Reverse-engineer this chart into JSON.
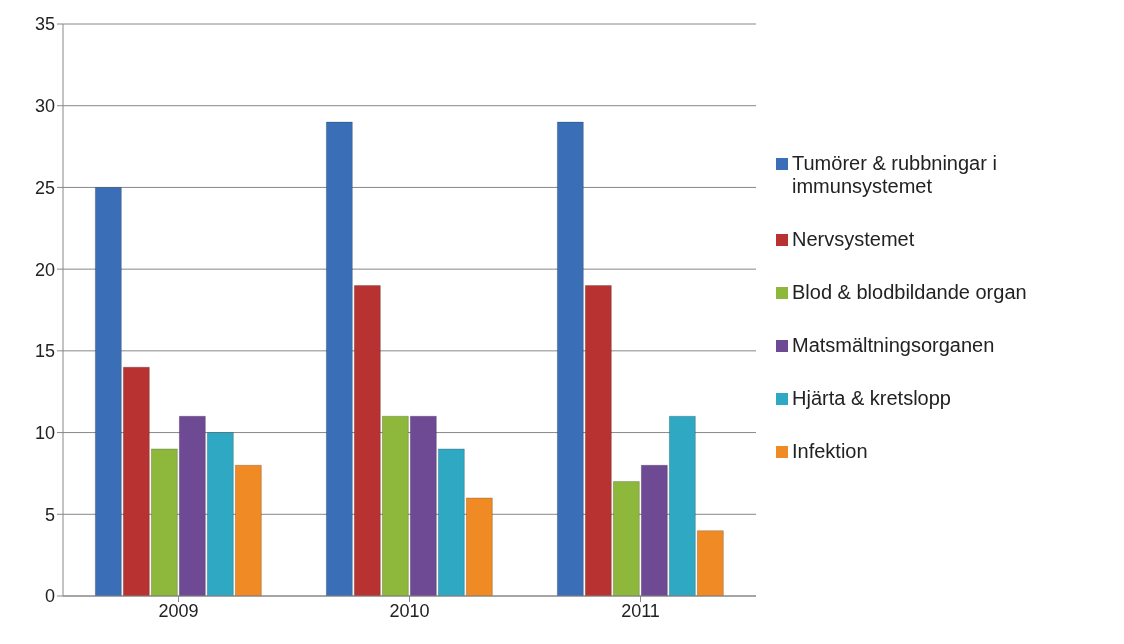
{
  "chart_data": {
    "type": "bar",
    "categories": [
      "2009",
      "2010",
      "2011"
    ],
    "series": [
      {
        "name": "Tumörer & rubbningar i immunsystemet",
        "color": "#3a6fb8",
        "values": [
          25,
          29,
          29
        ]
      },
      {
        "name": "Nervsystemet",
        "color": "#b83232",
        "values": [
          14,
          19,
          19
        ]
      },
      {
        "name": "Blod & blodbildande organ",
        "color": "#8db83c",
        "values": [
          9,
          11,
          7
        ]
      },
      {
        "name": "Matsmältningsorganen",
        "color": "#6f4a94",
        "values": [
          11,
          11,
          8
        ]
      },
      {
        "name": "Hjärta & kretslopp",
        "color": "#2fa8c4",
        "values": [
          10,
          9,
          11
        ]
      },
      {
        "name": "Infektion",
        "color": "#f08a24",
        "values": [
          8,
          6,
          4
        ]
      }
    ],
    "ylim": [
      0,
      35
    ],
    "yticks": [
      0,
      5,
      10,
      15,
      20,
      25,
      30,
      35
    ],
    "grid": "y",
    "legend": "right"
  }
}
